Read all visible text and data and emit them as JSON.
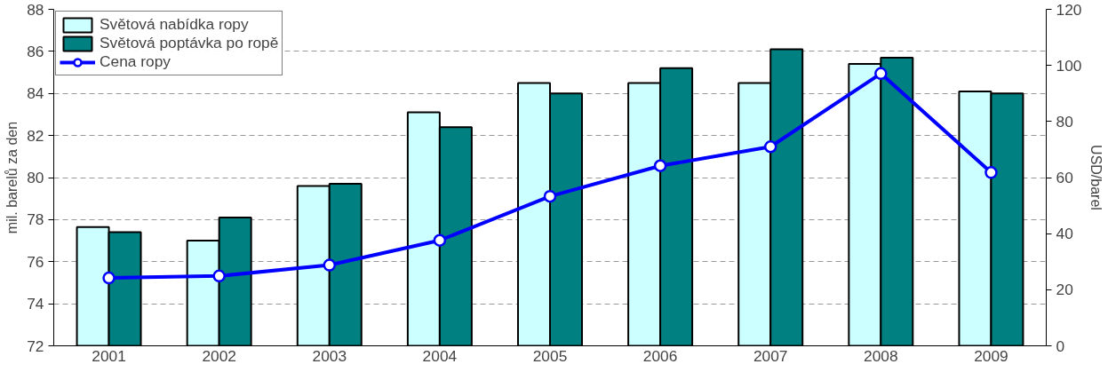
{
  "chart_data": {
    "type": "bar",
    "categories": [
      "2001",
      "2002",
      "2003",
      "2004",
      "2005",
      "2006",
      "2007",
      "2008",
      "2009"
    ],
    "ylabel": "mil. barelů za den",
    "y2label": "USD/barel",
    "ylim": [
      72,
      88
    ],
    "yticks": [
      72,
      74,
      76,
      78,
      80,
      82,
      84,
      86,
      88
    ],
    "y2lim": [
      0,
      120
    ],
    "y2ticks": [
      0,
      20,
      40,
      60,
      80,
      100,
      120
    ],
    "grid": "y",
    "legend": "top left",
    "marker": "circle",
    "series": [
      {
        "name": "Světová nabídka ropy",
        "color": "#ccffff",
        "values": [
          77.65,
          77.0,
          79.6,
          83.1,
          84.5,
          84.5,
          84.5,
          85.4,
          84.1
        ]
      },
      {
        "name": "Světová poptávka po ropě",
        "color": "#008080",
        "values": [
          77.4,
          78.1,
          79.7,
          82.4,
          84.0,
          85.2,
          86.1,
          85.7,
          84.0
        ]
      },
      {
        "name": "Cena ropy",
        "type": "line",
        "axis": "y2",
        "color": "#0000ff",
        "values": [
          24.2,
          24.9,
          28.8,
          37.6,
          53.3,
          64.2,
          71.0,
          97.1,
          61.8
        ]
      }
    ]
  }
}
